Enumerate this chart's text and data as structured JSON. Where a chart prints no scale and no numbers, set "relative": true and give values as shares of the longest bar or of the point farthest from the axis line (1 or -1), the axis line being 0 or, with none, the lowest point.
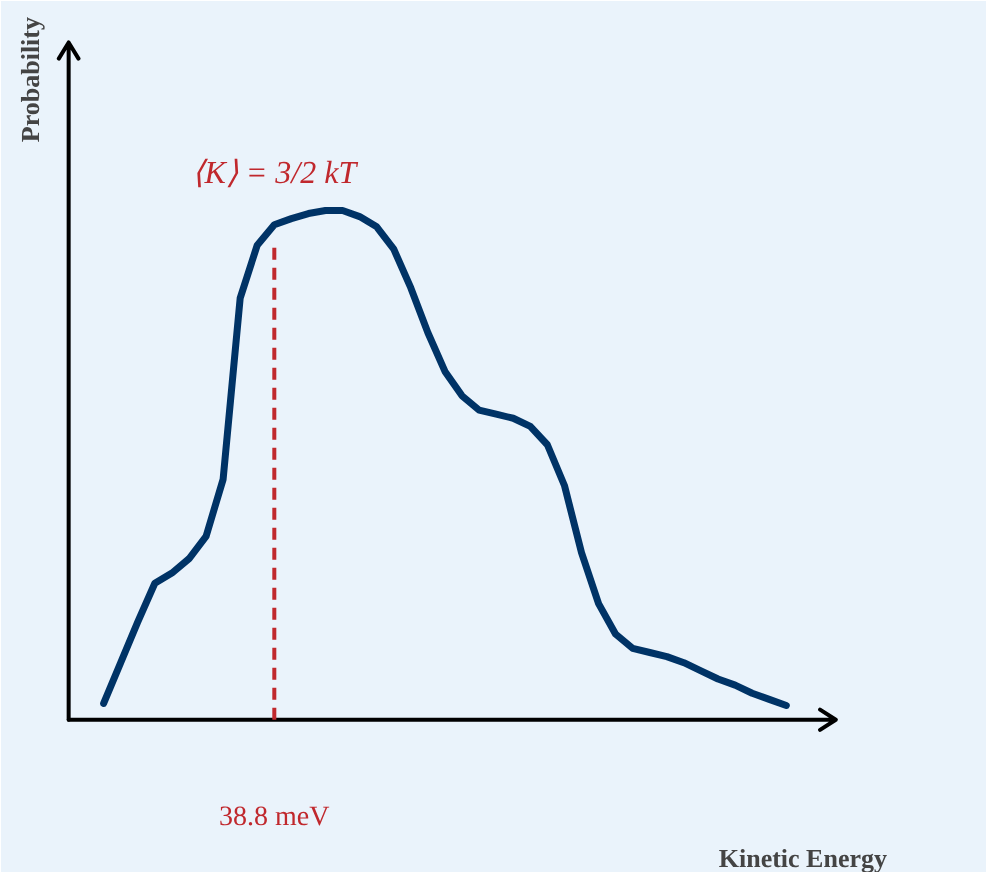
{
  "chart_data": {
    "type": "line",
    "relative": true,
    "xlabel": "Kinetic Energy",
    "ylabel": "Probability",
    "categories": [
      null,
      null,
      null,
      null,
      null,
      null,
      null,
      null,
      null,
      null,
      null,
      null,
      null,
      null,
      null,
      null,
      null,
      null,
      null,
      null,
      null,
      null,
      null,
      null,
      null,
      null,
      null,
      null,
      null,
      null,
      null,
      null,
      null,
      null,
      null,
      null,
      null,
      null,
      null,
      null,
      null
    ],
    "series": [
      {
        "color": "#003366",
        "values": [
          0.032,
          0.112,
          0.192,
          0.268,
          0.288,
          0.316,
          0.36,
          0.472,
          0.828,
          0.932,
          0.972,
          0.984,
          0.994,
          1,
          1,
          0.988,
          0.968,
          0.924,
          0.848,
          0.76,
          0.684,
          0.636,
          0.608,
          0.6,
          0.592,
          0.576,
          0.54,
          0.46,
          0.328,
          0.228,
          0.168,
          0.14,
          0.132,
          0.124,
          0.112,
          0.096,
          0.08,
          0.068,
          0.052,
          0.04,
          0.028
        ]
      }
    ],
    "annotations": [
      "⟨K⟩ = 3/2 kT",
      "38.8 meV"
    ],
    "grid": false,
    "marker": "none",
    "line_style": "solid"
  }
}
